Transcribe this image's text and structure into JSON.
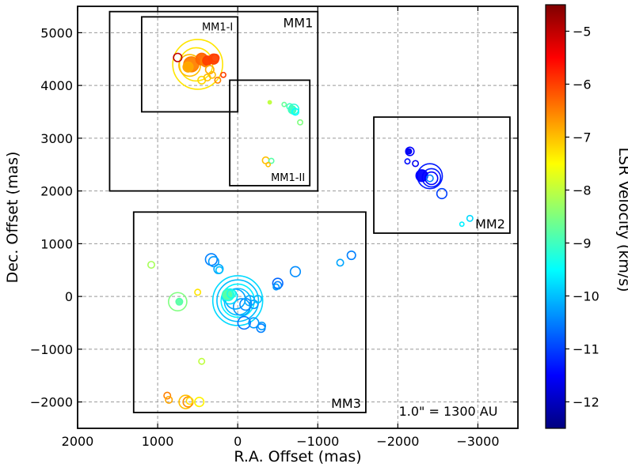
{
  "chart_data": {
    "type": "scatter",
    "xlabel": "R.A. Offset (mas)",
    "ylabel": "Dec. Offset (mas)",
    "xlim": [
      2000,
      -3500
    ],
    "ylim": [
      -2500,
      5500
    ],
    "x_ticks": [
      2000,
      1000,
      0,
      -1000,
      -2000,
      -3000
    ],
    "x_tick_labels": [
      "2000",
      "1000",
      "0",
      "−1000",
      "−2000",
      "−3000"
    ],
    "y_ticks": [
      -2000,
      -1000,
      0,
      1000,
      2000,
      3000,
      4000,
      5000
    ],
    "y_tick_labels": [
      "−2000",
      "−1000",
      "0",
      "1000",
      "2000",
      "3000",
      "4000",
      "5000"
    ],
    "grid": true,
    "annotation": "1.0\" = 1300 AU",
    "colorbar": {
      "label": "LSR Velocity (km/s)",
      "range": [
        -12.5,
        -4.5
      ],
      "ticks": [
        -5,
        -6,
        -7,
        -8,
        -9,
        -10,
        -11,
        -12
      ],
      "tick_labels": [
        "−5",
        "−6",
        "−7",
        "−8",
        "−9",
        "−10",
        "−11",
        "−12"
      ],
      "colormap": "jet"
    },
    "regions": [
      {
        "name": "MM1",
        "x0": 1600,
        "x1": -1000,
        "y0": 2000,
        "y1": 5400,
        "label_pos": "top-right"
      },
      {
        "name": "MM1-I",
        "x0": 1200,
        "x1": 0,
        "y0": 3500,
        "y1": 5300,
        "label_pos": "top-right"
      },
      {
        "name": "MM1-II",
        "x0": 100,
        "x1": -900,
        "y0": 2100,
        "y1": 4100,
        "label_pos": "bottom-right"
      },
      {
        "name": "MM2",
        "x0": -1700,
        "x1": -3400,
        "y0": 1200,
        "y1": 3400,
        "label_pos": "bottom-right"
      },
      {
        "name": "MM3",
        "x0": 1300,
        "x1": -1600,
        "y0": -2200,
        "y1": 1600,
        "label_pos": "bottom-right"
      }
    ],
    "points": [
      {
        "x": 750,
        "y": 4530,
        "v": -5.0,
        "s": 50,
        "filled": false
      },
      {
        "x": 500,
        "y": 4400,
        "v": -7.3,
        "s": 300,
        "filled": false
      },
      {
        "x": 520,
        "y": 4400,
        "v": -7.3,
        "s": 200,
        "filled": false
      },
      {
        "x": 600,
        "y": 4380,
        "v": -7.0,
        "s": 130,
        "filled": false
      },
      {
        "x": 580,
        "y": 4400,
        "v": -6.5,
        "s": 90,
        "filled": true
      },
      {
        "x": 620,
        "y": 4350,
        "v": -6.8,
        "s": 60,
        "filled": true
      },
      {
        "x": 450,
        "y": 4500,
        "v": -6.3,
        "s": 70,
        "filled": true
      },
      {
        "x": 400,
        "y": 4450,
        "v": -6.5,
        "s": 60,
        "filled": true
      },
      {
        "x": 380,
        "y": 4470,
        "v": -6.0,
        "s": 55,
        "filled": true
      },
      {
        "x": 300,
        "y": 4500,
        "v": -6.0,
        "s": 60,
        "filled": true
      },
      {
        "x": 280,
        "y": 4520,
        "v": -6.0,
        "s": 45,
        "filled": false
      },
      {
        "x": 350,
        "y": 4300,
        "v": -6.8,
        "s": 50,
        "filled": false
      },
      {
        "x": 320,
        "y": 4200,
        "v": -7.0,
        "s": 40,
        "filled": false
      },
      {
        "x": 450,
        "y": 4100,
        "v": -7.2,
        "s": 45,
        "filled": false
      },
      {
        "x": 380,
        "y": 4150,
        "v": -7.0,
        "s": 40,
        "filled": false
      },
      {
        "x": 250,
        "y": 4100,
        "v": -6.5,
        "s": 35,
        "filled": false
      },
      {
        "x": 180,
        "y": 4200,
        "v": -6.0,
        "s": 30,
        "filled": false
      },
      {
        "x": -400,
        "y": 3680,
        "v": -8.0,
        "s": 20,
        "filled": true
      },
      {
        "x": -580,
        "y": 3640,
        "v": -8.7,
        "s": 25,
        "filled": false
      },
      {
        "x": -650,
        "y": 3600,
        "v": -9.0,
        "s": 35,
        "filled": false
      },
      {
        "x": -700,
        "y": 3550,
        "v": -9.2,
        "s": 60,
        "filled": false
      },
      {
        "x": -680,
        "y": 3540,
        "v": -9.0,
        "s": 45,
        "filled": true
      },
      {
        "x": -720,
        "y": 3500,
        "v": -9.5,
        "s": 40,
        "filled": false
      },
      {
        "x": -780,
        "y": 3300,
        "v": -8.5,
        "s": 30,
        "filled": false
      },
      {
        "x": -350,
        "y": 2580,
        "v": -7.0,
        "s": 40,
        "filled": false
      },
      {
        "x": -420,
        "y": 2570,
        "v": -8.8,
        "s": 30,
        "filled": false
      },
      {
        "x": -380,
        "y": 2500,
        "v": -7.0,
        "s": 25,
        "filled": false
      },
      {
        "x": -2150,
        "y": 2750,
        "v": -11.5,
        "s": 50,
        "filled": false
      },
      {
        "x": -2140,
        "y": 2750,
        "v": -11.6,
        "s": 30,
        "filled": true
      },
      {
        "x": -2120,
        "y": 2560,
        "v": -11.4,
        "s": 30,
        "filled": false
      },
      {
        "x": -2220,
        "y": 2520,
        "v": -11.6,
        "s": 35,
        "filled": false
      },
      {
        "x": -2300,
        "y": 2290,
        "v": -11.5,
        "s": 70,
        "filled": true
      },
      {
        "x": -2400,
        "y": 2280,
        "v": -11.3,
        "s": 150,
        "filled": false
      },
      {
        "x": -2420,
        "y": 2250,
        "v": -11.3,
        "s": 110,
        "filled": false
      },
      {
        "x": -2420,
        "y": 2240,
        "v": -11.5,
        "s": 75,
        "filled": false
      },
      {
        "x": -2400,
        "y": 2240,
        "v": -10.5,
        "s": 40,
        "filled": false
      },
      {
        "x": -2550,
        "y": 1950,
        "v": -11.0,
        "s": 60,
        "filled": false
      },
      {
        "x": -2900,
        "y": 1480,
        "v": -9.8,
        "s": 35,
        "filled": false
      },
      {
        "x": -2800,
        "y": 1370,
        "v": -9.6,
        "s": 25,
        "filled": false
      },
      {
        "x": 1080,
        "y": 600,
        "v": -8.2,
        "s": 40,
        "filled": false
      },
      {
        "x": 330,
        "y": 700,
        "v": -10.5,
        "s": 70,
        "filled": false
      },
      {
        "x": 300,
        "y": 660,
        "v": -10.3,
        "s": 60,
        "filled": false
      },
      {
        "x": 240,
        "y": 520,
        "v": -10.2,
        "s": 55,
        "filled": false
      },
      {
        "x": 230,
        "y": 500,
        "v": -10.0,
        "s": 40,
        "filled": false
      },
      {
        "x": -720,
        "y": 470,
        "v": -10.4,
        "s": 60,
        "filled": false
      },
      {
        "x": -1280,
        "y": 640,
        "v": -10.2,
        "s": 40,
        "filled": false
      },
      {
        "x": -1420,
        "y": 780,
        "v": -10.5,
        "s": 50,
        "filled": false
      },
      {
        "x": -500,
        "y": 250,
        "v": -10.7,
        "s": 60,
        "filled": false
      },
      {
        "x": -500,
        "y": 210,
        "v": -10.5,
        "s": 45,
        "filled": false
      },
      {
        "x": -480,
        "y": 180,
        "v": -10.3,
        "s": 35,
        "filled": false
      },
      {
        "x": 750,
        "y": -100,
        "v": -8.5,
        "s": 110,
        "filled": false
      },
      {
        "x": 730,
        "y": -100,
        "v": -8.8,
        "s": 40,
        "filled": true
      },
      {
        "x": 500,
        "y": 80,
        "v": -7.3,
        "s": 35,
        "filled": false
      },
      {
        "x": 0,
        "y": -80,
        "v": -9.8,
        "s": 300,
        "filled": false
      },
      {
        "x": 0,
        "y": -80,
        "v": -10.0,
        "s": 250,
        "filled": false
      },
      {
        "x": 0,
        "y": -80,
        "v": -9.6,
        "s": 200,
        "filled": false
      },
      {
        "x": 0,
        "y": -100,
        "v": -10.0,
        "s": 160,
        "filled": false
      },
      {
        "x": 30,
        "y": -50,
        "v": -10.2,
        "s": 120,
        "filled": false
      },
      {
        "x": -50,
        "y": -200,
        "v": -10.3,
        "s": 100,
        "filled": false
      },
      {
        "x": 100,
        "y": 0,
        "v": -9.8,
        "s": 90,
        "filled": false
      },
      {
        "x": 120,
        "y": 30,
        "v": -9.2,
        "s": 70,
        "filled": true
      },
      {
        "x": 130,
        "y": 30,
        "v": -8.8,
        "s": 50,
        "filled": true
      },
      {
        "x": 80,
        "y": 50,
        "v": -9.3,
        "s": 50,
        "filled": false
      },
      {
        "x": -100,
        "y": -150,
        "v": -10.4,
        "s": 70,
        "filled": false
      },
      {
        "x": -150,
        "y": -80,
        "v": -10.2,
        "s": 60,
        "filled": false
      },
      {
        "x": -200,
        "y": -150,
        "v": -10.3,
        "s": 50,
        "filled": false
      },
      {
        "x": -250,
        "y": -50,
        "v": -10.0,
        "s": 45,
        "filled": false
      },
      {
        "x": -80,
        "y": -500,
        "v": -10.6,
        "s": 75,
        "filled": false
      },
      {
        "x": -200,
        "y": -500,
        "v": -10.3,
        "s": 60,
        "filled": false
      },
      {
        "x": -300,
        "y": -560,
        "v": -10.3,
        "s": 45,
        "filled": false
      },
      {
        "x": -290,
        "y": -600,
        "v": -10.5,
        "s": 50,
        "filled": false
      },
      {
        "x": 450,
        "y": -1230,
        "v": -8.0,
        "s": 35,
        "filled": false
      },
      {
        "x": 880,
        "y": -1880,
        "v": -6.5,
        "s": 40,
        "filled": false
      },
      {
        "x": 860,
        "y": -1960,
        "v": -6.8,
        "s": 40,
        "filled": false
      },
      {
        "x": 650,
        "y": -2000,
        "v": -7.0,
        "s": 80,
        "filled": false
      },
      {
        "x": 620,
        "y": -2000,
        "v": -6.6,
        "s": 60,
        "filled": false
      },
      {
        "x": 600,
        "y": -1980,
        "v": -7.2,
        "s": 40,
        "filled": false
      },
      {
        "x": 480,
        "y": -2000,
        "v": -7.4,
        "s": 55,
        "filled": false
      }
    ]
  }
}
